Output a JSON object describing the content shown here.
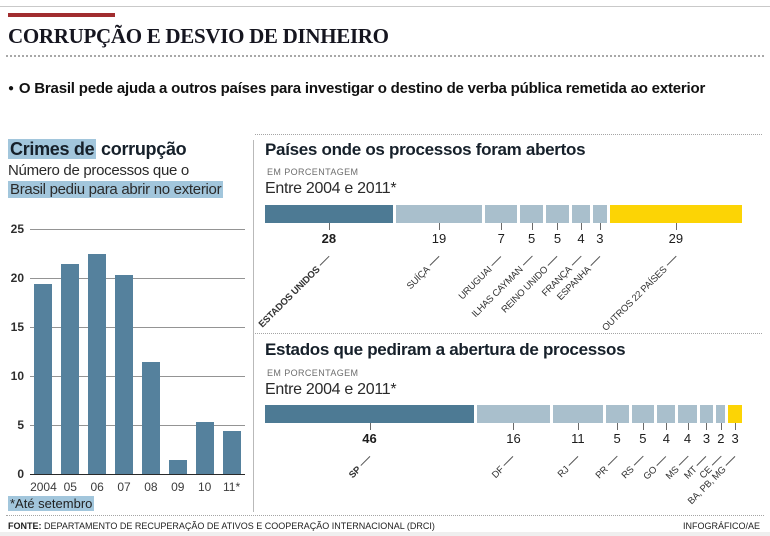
{
  "header": {
    "bullet": "●",
    "title": "CORRUPÇÃO E DESVIO DE DINHEIRO",
    "lede": "O Brasil pede ajuda a outros países para investigar o destino de verba pública remetida ao exterior"
  },
  "left_chart": {
    "title_highlight": "Crimes de",
    "title_rest": " corrupção",
    "subtitle_line1": "Número de processos que o",
    "subtitle_line2": "Brasil pediu para abrir no exterior",
    "footnote": "*Até setembro"
  },
  "right": {
    "section1": {
      "title": "Países onde os processos foram abertos",
      "unit": "EM PORCENTAGEM",
      "period": "Entre 2004 e 2011*"
    },
    "section2": {
      "title": "Estados que pediram a abertura de processos",
      "unit": "EM PORCENTAGEM",
      "period": "Entre 2004 e 2011*"
    }
  },
  "footer": {
    "source_label": "FONTE:",
    "source": " DEPARTAMENTO DE RECUPERAÇÃO DE ATIVOS E COOPERAÇÃO INTERNACIONAL (DRCI)",
    "credit": "INFOGRÁFICO/AE"
  },
  "colors": {
    "bar_blue": "#55819d",
    "dark": "#4d7a94",
    "light": "#a9bfcc",
    "yellow": "#fcd405",
    "highlight": "#a2c6dc",
    "red": "#a12d2f"
  },
  "chart_data": [
    {
      "type": "bar",
      "title": "Crimes de corrupção",
      "subtitle": "Número de processos que o Brasil pediu para abrir no exterior",
      "categories": [
        "2004",
        "05",
        "06",
        "07",
        "08",
        "09",
        "10",
        "11*"
      ],
      "values": [
        19.4,
        21.4,
        22.5,
        20.3,
        11.4,
        1.4,
        5.3,
        4.4
      ],
      "xlabel": "",
      "ylabel": "",
      "ylim": [
        0,
        25
      ],
      "yticks": [
        0,
        5,
        10,
        15,
        20,
        25
      ],
      "grid": true,
      "footnote": "*Até setembro"
    },
    {
      "type": "stacked-bar",
      "title": "Países onde os processos foram abertos",
      "unit": "EM PORCENTAGEM",
      "period": "Entre 2004 e 2011*",
      "segments": [
        {
          "label": "ESTADOS UNIDOS",
          "value": 28,
          "color": "dark",
          "bold": true
        },
        {
          "label": "SUÍÇA",
          "value": 19,
          "color": "light",
          "bold": false
        },
        {
          "label": "URUGUAI",
          "value": 7,
          "color": "light",
          "bold": false
        },
        {
          "label": "ILHAS CAYMAN",
          "value": 5,
          "color": "light",
          "bold": false
        },
        {
          "label": "REINO UNIDO",
          "value": 5,
          "color": "light",
          "bold": false
        },
        {
          "label": "FRANÇA",
          "value": 4,
          "color": "light",
          "bold": false
        },
        {
          "label": "ESPANHA",
          "value": 3,
          "color": "light",
          "bold": false
        },
        {
          "label": "OUTROS 22 PAÍSES",
          "value": 29,
          "color": "yellow",
          "bold": false
        }
      ]
    },
    {
      "type": "stacked-bar",
      "title": "Estados que pediram a abertura de processos",
      "unit": "EM PORCENTAGEM",
      "period": "Entre 2004 e 2011*",
      "segments": [
        {
          "label": "SP",
          "value": 46,
          "color": "dark",
          "bold": true
        },
        {
          "label": "DF",
          "value": 16,
          "color": "light",
          "bold": false
        },
        {
          "label": "RJ",
          "value": 11,
          "color": "light",
          "bold": false
        },
        {
          "label": "PR",
          "value": 5,
          "color": "light",
          "bold": false
        },
        {
          "label": "RS",
          "value": 5,
          "color": "light",
          "bold": false
        },
        {
          "label": "GO",
          "value": 4,
          "color": "light",
          "bold": false
        },
        {
          "label": "MS",
          "value": 4,
          "color": "light",
          "bold": false
        },
        {
          "label": "MT",
          "value": 3,
          "color": "light",
          "bold": false
        },
        {
          "label": "CE",
          "value": 2,
          "color": "light",
          "bold": false
        },
        {
          "label": "BA, PB, MG",
          "value": 3,
          "color": "yellow",
          "bold": false
        }
      ]
    }
  ]
}
